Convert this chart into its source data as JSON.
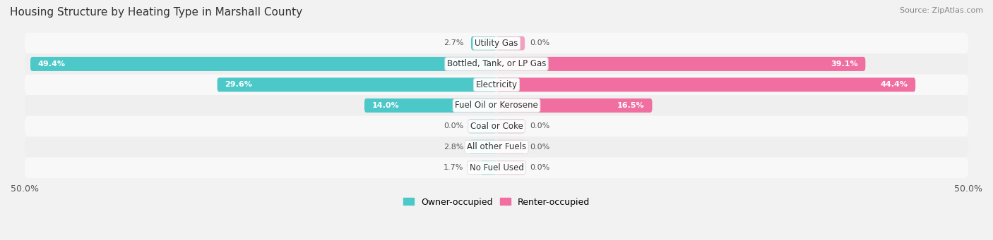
{
  "title": "Housing Structure by Heating Type in Marshall County",
  "source": "Source: ZipAtlas.com",
  "categories": [
    "Utility Gas",
    "Bottled, Tank, or LP Gas",
    "Electricity",
    "Fuel Oil or Kerosene",
    "Coal or Coke",
    "All other Fuels",
    "No Fuel Used"
  ],
  "owner_values": [
    2.7,
    49.4,
    29.6,
    14.0,
    0.0,
    2.8,
    1.7
  ],
  "renter_values": [
    0.0,
    39.1,
    44.4,
    16.5,
    0.0,
    0.0,
    0.0
  ],
  "owner_color": "#4dc8c8",
  "renter_color": "#f06fa0",
  "owner_color_light": "#7dd8d8",
  "renter_color_light": "#f4a0c0",
  "max_value": 50.0,
  "bar_height": 0.68,
  "zero_bar_width": 3.0,
  "bg_color": "#f2f2f2",
  "row_bg_even": "#f0f0f0",
  "row_bg_odd": "#e8e8e8",
  "title_fontsize": 11,
  "label_fontsize": 8.5,
  "tick_fontsize": 9
}
